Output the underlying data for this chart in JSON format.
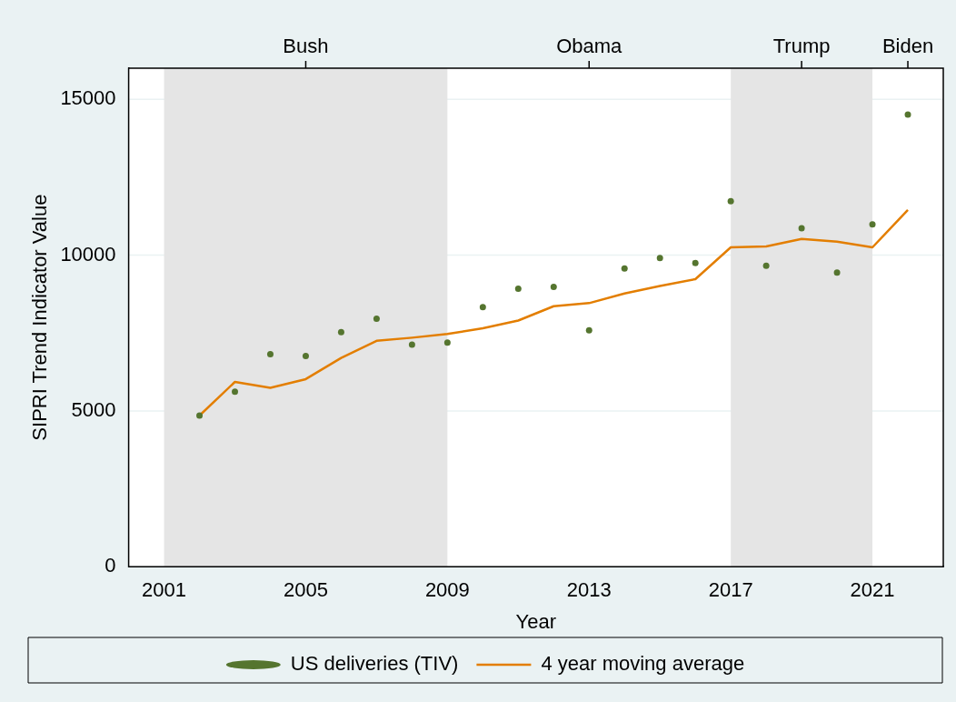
{
  "chart_data": {
    "type": "scatter",
    "xlabel": "Year",
    "ylabel": "SIPRI Trend Indicator Value",
    "x": [
      2002,
      2003,
      2004,
      2005,
      2006,
      2007,
      2008,
      2009,
      2010,
      2011,
      2012,
      2013,
      2014,
      2015,
      2016,
      2017,
      2018,
      2019,
      2020,
      2021,
      2022
    ],
    "series": [
      {
        "name": "US deliveries (TIV)",
        "marker": "circle",
        "color": "#55752f",
        "values": [
          4850,
          5620,
          6820,
          6760,
          7530,
          7960,
          7130,
          7190,
          8330,
          8920,
          8980,
          7590,
          9570,
          9910,
          9750,
          11730,
          9660,
          10860,
          9440,
          10990,
          14510
        ]
      },
      {
        "name": "4 year moving average",
        "type": "line",
        "marker": "none",
        "line_style": "solid",
        "color": "#e37e00",
        "values": [
          4850,
          5930,
          5740,
          6020,
          6700,
          7250,
          7350,
          7470,
          7650,
          7900,
          8360,
          8460,
          8770,
          9010,
          9230,
          10250,
          10280,
          10520,
          10430,
          10250,
          11450
        ]
      }
    ],
    "xlim": [
      2000,
      2023
    ],
    "xticks": [
      2001,
      2005,
      2009,
      2013,
      2017,
      2021
    ],
    "annotations": [
      {
        "text": "Bush",
        "x": 2005
      },
      {
        "text": "Obama",
        "x": 2013
      },
      {
        "text": "Trump",
        "x": 2019
      },
      {
        "text": "Biden",
        "x": 2022
      }
    ],
    "ylim": [
      0,
      16000
    ],
    "yticks": [
      0,
      5000,
      10000,
      15000
    ],
    "bands": [
      {
        "axis": "x",
        "from": 2001,
        "to": 2009,
        "color": "#e5e5e5"
      },
      {
        "axis": "x",
        "from": 2017,
        "to": 2021,
        "color": "#e5e5e5"
      }
    ],
    "grid": "y",
    "legend": "bottom"
  }
}
